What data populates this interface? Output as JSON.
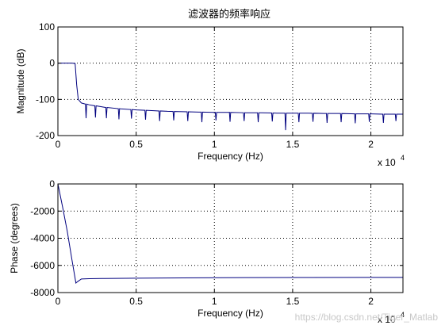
{
  "title": "滤波器的频率响应",
  "watermark": "https://blog.csdn.net/Tiger_Matlab",
  "line_color": "#00007f",
  "chart_data": [
    {
      "type": "line",
      "title": "滤波器的频率响应",
      "xlabel": "Frequency (Hz)",
      "ylabel": "Magnitude (dB)",
      "x_exponent_label": "x 10",
      "x_exponent": "4",
      "xlim": [
        0,
        22050
      ],
      "ylim": [
        -200,
        100
      ],
      "xticks": [
        0,
        5000,
        10000,
        15000,
        20000
      ],
      "xtick_labels": [
        "0",
        "0.5",
        "1",
        "1.5",
        "2"
      ],
      "yticks": [
        -200,
        -100,
        0,
        100
      ],
      "ytick_labels": [
        "-200",
        "-100",
        "0",
        "100"
      ],
      "grid": true,
      "series": [
        {
          "x": [
            0,
            500,
            900,
            1100,
            1200,
            1300,
            1500,
            2000,
            3000,
            4000,
            5000,
            6000,
            7000,
            8000,
            9000,
            10000,
            11000,
            12000,
            13000,
            14000,
            15000,
            16000,
            17000,
            18000,
            19000,
            20000,
            21000,
            22050
          ],
          "y": [
            0,
            0,
            0,
            -1,
            -60,
            -100,
            -110,
            -115,
            -122,
            -126,
            -129,
            -131,
            -133,
            -134,
            -135,
            -136,
            -136,
            -137,
            -137,
            -138,
            -138,
            -138,
            -139,
            -139,
            -140,
            -140,
            -141,
            -141
          ],
          "noise_spikes": [
            {
              "x": 1800,
              "y": -152
            },
            {
              "x": 2400,
              "y": -150
            },
            {
              "x": 3100,
              "y": -152
            },
            {
              "x": 3900,
              "y": -155
            },
            {
              "x": 4700,
              "y": -153
            },
            {
              "x": 5600,
              "y": -156
            },
            {
              "x": 6500,
              "y": -160
            },
            {
              "x": 7400,
              "y": -158
            },
            {
              "x": 8300,
              "y": -160
            },
            {
              "x": 9200,
              "y": -163
            },
            {
              "x": 10100,
              "y": -158
            },
            {
              "x": 11000,
              "y": -162
            },
            {
              "x": 11900,
              "y": -160
            },
            {
              "x": 12800,
              "y": -163
            },
            {
              "x": 13700,
              "y": -161
            },
            {
              "x": 14550,
              "y": -185
            },
            {
              "x": 15400,
              "y": -163
            },
            {
              "x": 16300,
              "y": -162
            },
            {
              "x": 17200,
              "y": -165
            },
            {
              "x": 18100,
              "y": -163
            },
            {
              "x": 19000,
              "y": -166
            },
            {
              "x": 19900,
              "y": -162
            },
            {
              "x": 20800,
              "y": -165
            },
            {
              "x": 21600,
              "y": -160
            }
          ]
        }
      ]
    },
    {
      "type": "line",
      "xlabel": "Frequency (Hz)",
      "ylabel": "Phase (degrees)",
      "x_exponent_label": "x 10",
      "x_exponent": "4",
      "xlim": [
        0,
        22050
      ],
      "ylim": [
        -8000,
        0
      ],
      "xticks": [
        0,
        5000,
        10000,
        15000,
        20000
      ],
      "xtick_labels": [
        "0",
        "0.5",
        "1",
        "1.5",
        "2"
      ],
      "yticks": [
        -8000,
        -6000,
        -4000,
        -2000,
        0
      ],
      "ytick_labels": [
        "-8000",
        "-6000",
        "-4000",
        "-2000",
        "0"
      ],
      "grid": true,
      "series": [
        {
          "x": [
            0,
            300,
            600,
            900,
            1150,
            1250,
            1500,
            2000,
            3000,
            5000,
            8000,
            12000,
            16000,
            20000,
            22050
          ],
          "y": [
            0,
            -1700,
            -3500,
            -5600,
            -7300,
            -7200,
            -7000,
            -6980,
            -6960,
            -6940,
            -6920,
            -6900,
            -6890,
            -6880,
            -6880
          ]
        }
      ]
    }
  ]
}
